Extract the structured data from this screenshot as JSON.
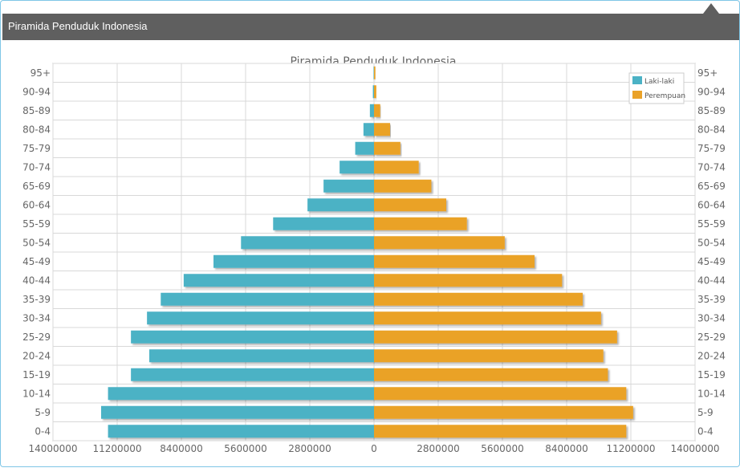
{
  "panel": {
    "title": "Piramida Penduduk Indonesia"
  },
  "chart_data": {
    "type": "bar",
    "orientation": "horizontal-pyramid",
    "title": "Piramida Penduduk Indonesia",
    "categories": [
      "0-4",
      "5-9",
      "10-14",
      "15-19",
      "20-24",
      "25-29",
      "30-34",
      "35-39",
      "40-44",
      "45-49",
      "50-54",
      "55-59",
      "60-64",
      "65-69",
      "70-74",
      "75-79",
      "80-84",
      "85-89",
      "90-94",
      "95+"
    ],
    "series": [
      {
        "name": "Laki-laki",
        "color": "#4bb2c5",
        "values": [
          11600000,
          11900000,
          11600000,
          10600000,
          9800000,
          10600000,
          9900000,
          9300000,
          8300000,
          7000000,
          5800000,
          4400000,
          2900000,
          2200000,
          1500000,
          820000,
          460000,
          180000,
          50000,
          20000
        ]
      },
      {
        "name": "Perempuan",
        "color": "#eaa228",
        "values": [
          11000000,
          11300000,
          11000000,
          10200000,
          10000000,
          10600000,
          9900000,
          9100000,
          8200000,
          7000000,
          5700000,
          4050000,
          3150000,
          2500000,
          1950000,
          1150000,
          700000,
          270000,
          100000,
          60000
        ]
      }
    ],
    "xlim": [
      -14000000,
      14000000
    ],
    "xticks": [
      -14000000,
      -11200000,
      -8400000,
      -5600000,
      -2800000,
      0,
      2800000,
      5600000,
      8400000,
      11200000,
      14000000
    ],
    "xtick_labels": [
      "14000000",
      "11200000",
      "8400000",
      "5600000",
      "2800000",
      "0",
      "2800000",
      "5600000",
      "8400000",
      "11200000",
      "14000000"
    ],
    "legend": {
      "position": "top-right",
      "labels": [
        "Laki-laki",
        "Perempuan"
      ]
    },
    "grid": true
  }
}
